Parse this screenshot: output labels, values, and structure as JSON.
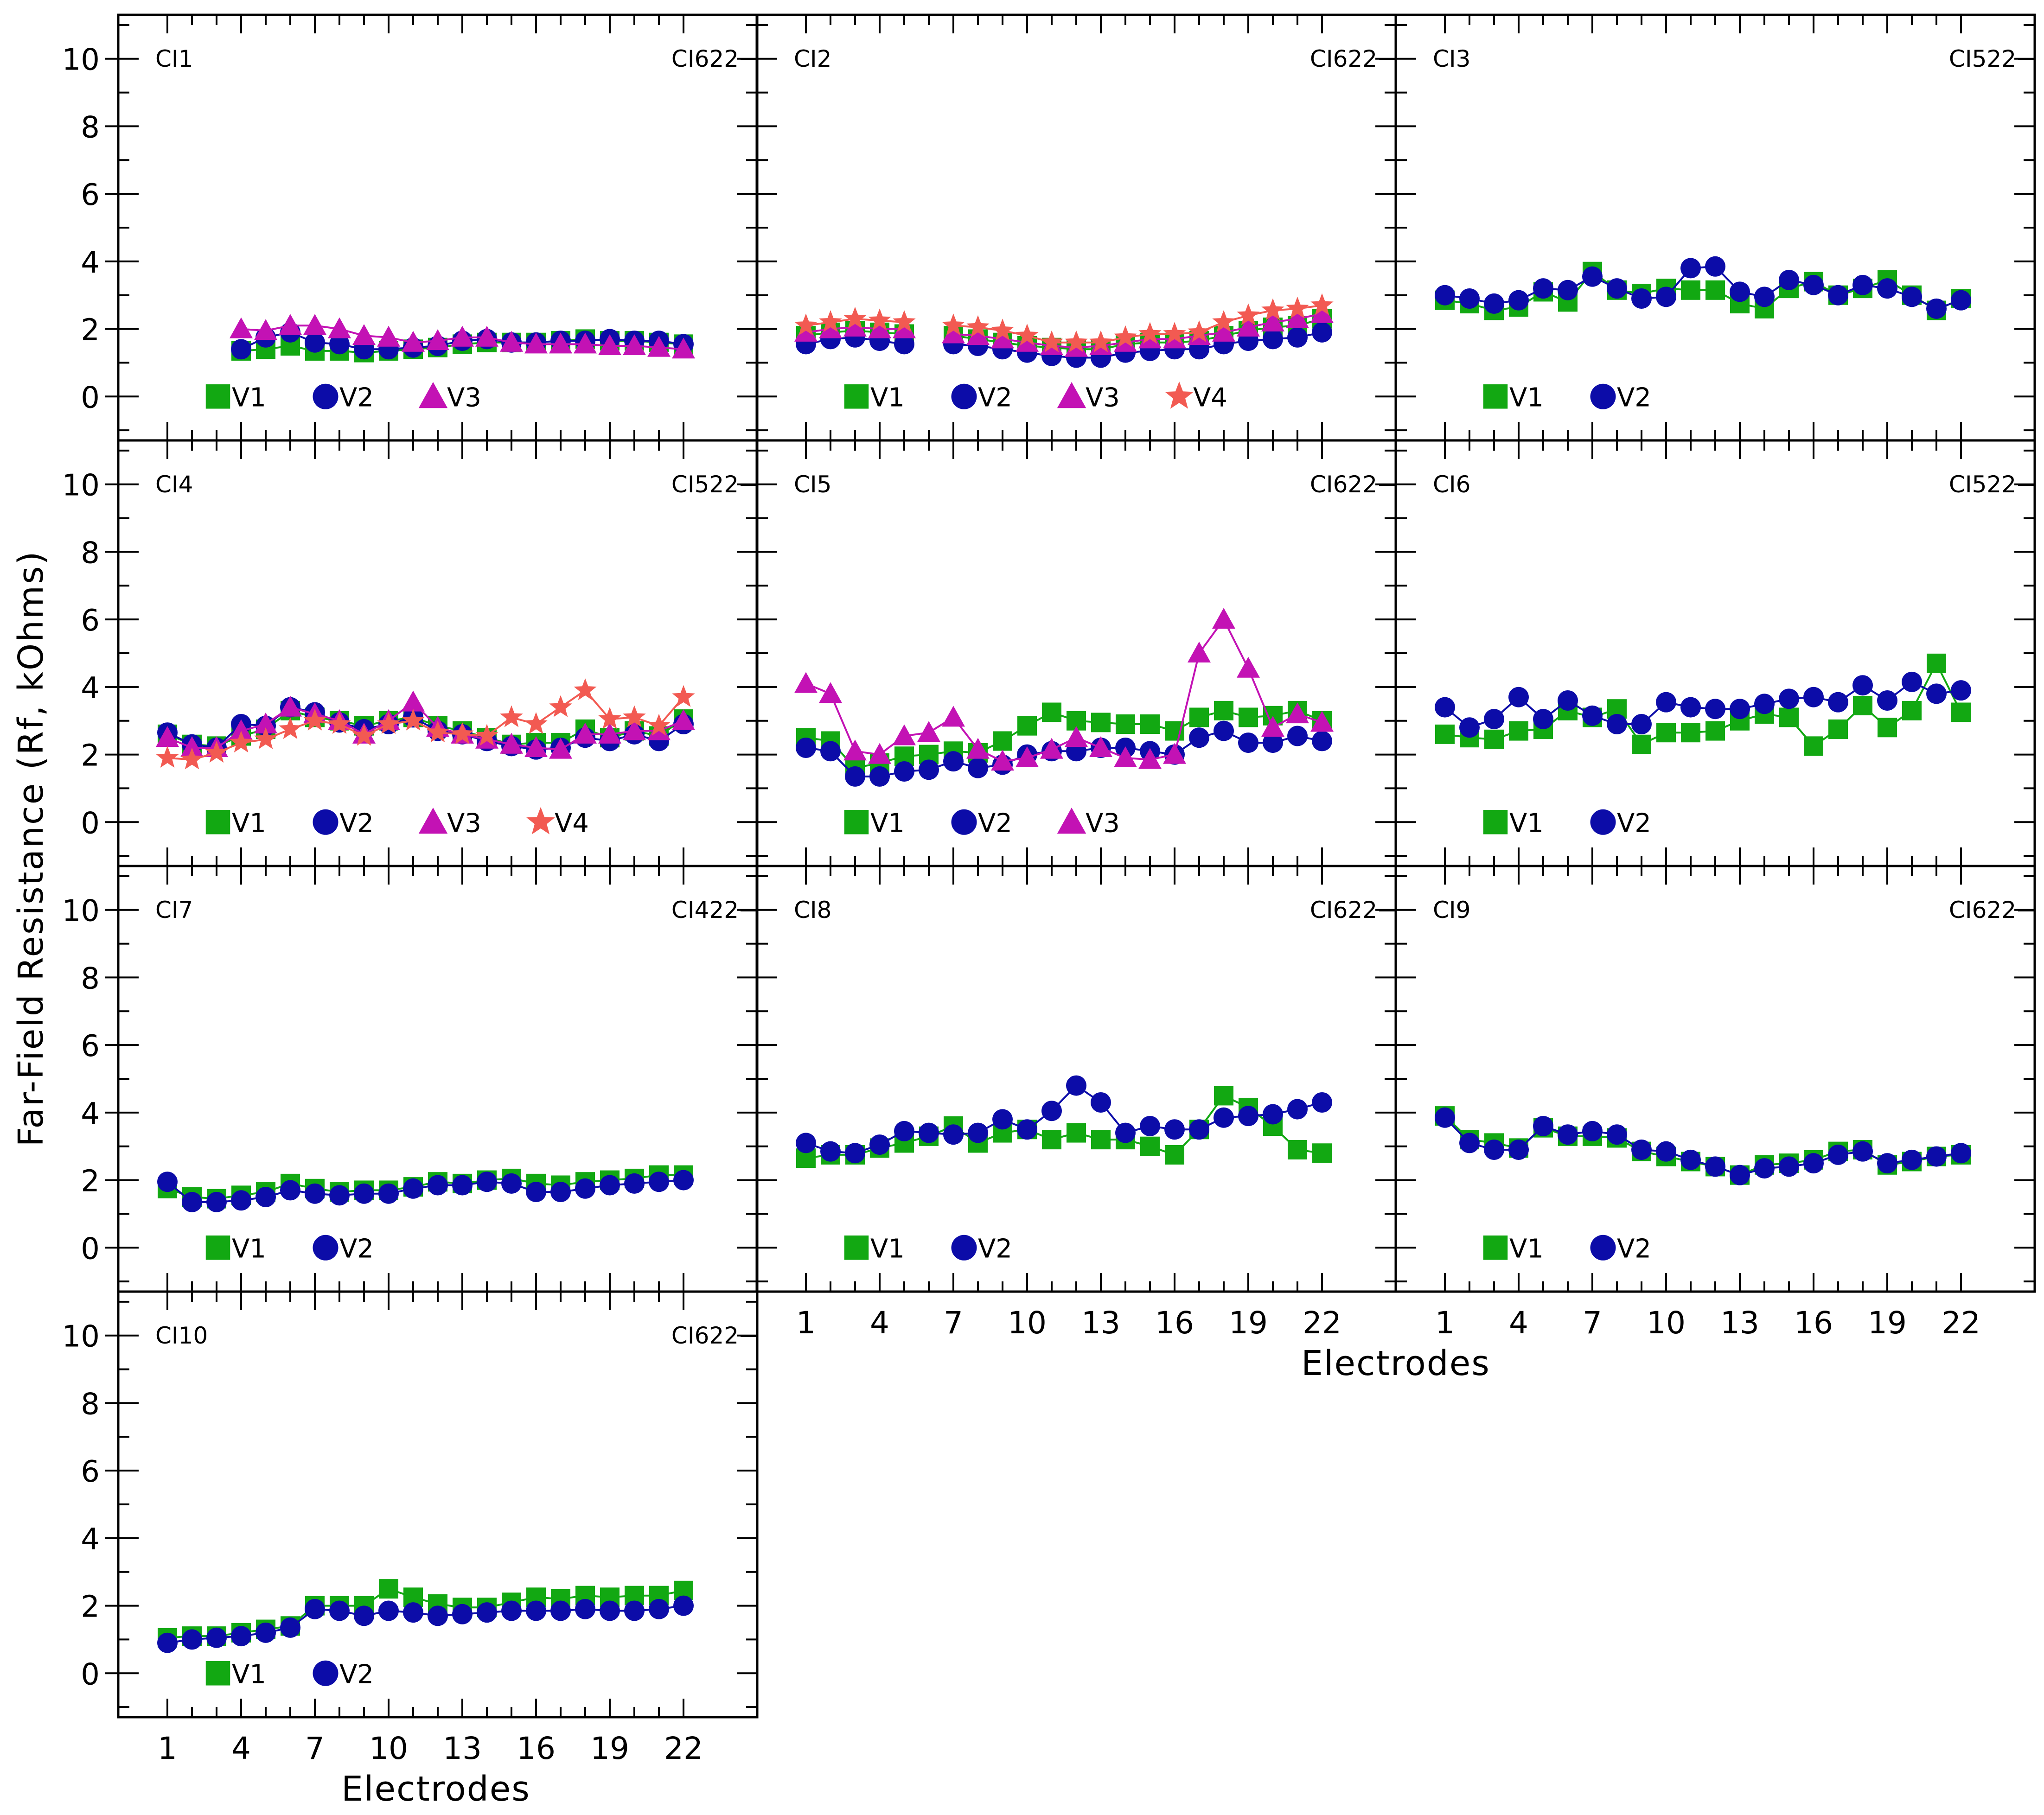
{
  "figure": {
    "ylabel": "Far-Field Resistance (Rf, kOhms)",
    "xlabel": "Electrodes"
  },
  "chart_data": {
    "type": "line",
    "ylabel": "Far-Field Resistance (Rf, kOhms)",
    "xlabel": "Electrodes",
    "ylim": [
      -1.3,
      11.3
    ],
    "xlim": [
      -1,
      25
    ],
    "yticks": [
      "0",
      "2",
      "4",
      "6",
      "8",
      "10"
    ],
    "xticks": [
      "1",
      "4",
      "7",
      "10",
      "13",
      "16",
      "19",
      "22"
    ],
    "colors": {
      "V1": "#12a812",
      "V2": "#0c0ca8",
      "V3": "#c312b4",
      "V4": "#f25a52"
    },
    "panels": [
      {
        "id": "CI1",
        "device": "CI622",
        "series": [
          {
            "name": "V1",
            "marker": "square",
            "values": [
              null,
              null,
              null,
              1.35,
              1.4,
              1.5,
              1.35,
              1.35,
              1.3,
              1.35,
              1.4,
              1.45,
              1.55,
              1.6,
              1.6,
              1.6,
              1.65,
              1.7,
              1.65,
              1.65,
              1.6,
              1.55
            ]
          },
          {
            "name": "V2",
            "marker": "circle",
            "values": [
              null,
              null,
              null,
              1.4,
              1.75,
              1.9,
              1.6,
              1.55,
              1.4,
              1.4,
              1.45,
              1.5,
              1.65,
              1.7,
              1.6,
              1.6,
              1.65,
              1.65,
              1.7,
              1.65,
              1.65,
              1.55
            ]
          },
          {
            "name": "V3",
            "marker": "triangle",
            "values": [
              null,
              null,
              null,
              2.0,
              1.95,
              2.1,
              2.1,
              2.0,
              1.8,
              1.75,
              1.6,
              1.65,
              1.75,
              1.75,
              1.6,
              1.55,
              1.55,
              1.55,
              1.5,
              1.5,
              1.45,
              1.4
            ]
          }
        ]
      },
      {
        "id": "CI2",
        "device": "CI622",
        "series": [
          {
            "name": "V1",
            "marker": "square",
            "values": [
              1.8,
              1.9,
              1.95,
              1.9,
              1.85,
              null,
              1.8,
              1.7,
              1.6,
              1.5,
              1.45,
              1.4,
              1.4,
              1.55,
              1.6,
              1.6,
              1.65,
              1.8,
              1.95,
              2.05,
              2.1,
              2.3
            ]
          },
          {
            "name": "V2",
            "marker": "circle",
            "values": [
              1.55,
              1.7,
              1.75,
              1.65,
              1.55,
              null,
              1.55,
              1.5,
              1.4,
              1.3,
              1.2,
              1.15,
              1.15,
              1.3,
              1.35,
              1.4,
              1.4,
              1.55,
              1.65,
              1.7,
              1.75,
              1.9
            ]
          },
          {
            "name": "V3",
            "marker": "triangle",
            "values": [
              1.9,
              2.0,
              2.05,
              2.0,
              2.0,
              null,
              1.85,
              1.8,
              1.7,
              1.6,
              1.5,
              1.45,
              1.5,
              1.6,
              1.7,
              1.7,
              1.8,
              1.9,
              2.05,
              2.2,
              2.3,
              2.45
            ]
          },
          {
            "name": "V4",
            "marker": "star",
            "values": [
              2.1,
              2.2,
              2.3,
              2.25,
              2.2,
              null,
              2.1,
              2.05,
              1.95,
              1.8,
              1.6,
              1.6,
              1.6,
              1.75,
              1.85,
              1.85,
              1.9,
              2.2,
              2.4,
              2.55,
              2.6,
              2.7
            ]
          }
        ]
      },
      {
        "id": "CI3",
        "device": "CI522",
        "series": [
          {
            "name": "V1",
            "marker": "square",
            "values": [
              2.85,
              2.75,
              2.55,
              2.65,
              3.1,
              2.8,
              3.7,
              3.15,
              3.05,
              3.2,
              3.15,
              3.15,
              2.75,
              2.6,
              3.2,
              3.4,
              3.0,
              3.2,
              3.45,
              3.0,
              2.55,
              2.9
            ]
          },
          {
            "name": "V2",
            "marker": "circle",
            "values": [
              3.0,
              2.9,
              2.75,
              2.85,
              3.2,
              3.15,
              3.55,
              3.2,
              2.9,
              2.95,
              3.8,
              3.85,
              3.1,
              2.95,
              3.45,
              3.3,
              3.0,
              3.3,
              3.2,
              2.95,
              2.6,
              2.85
            ]
          }
        ]
      },
      {
        "id": "CI4",
        "device": "CI522",
        "series": [
          {
            "name": "V1",
            "marker": "square",
            "values": [
              2.6,
              2.3,
              2.25,
              2.55,
              2.75,
              3.3,
              3.1,
              3.0,
              2.85,
              3.0,
              3.1,
              2.85,
              2.7,
              2.5,
              2.3,
              2.35,
              2.35,
              2.75,
              2.5,
              2.7,
              2.55,
              3.05
            ]
          },
          {
            "name": "V2",
            "marker": "circle",
            "values": [
              2.65,
              2.3,
              2.2,
              2.9,
              2.85,
              3.4,
              3.25,
              2.95,
              2.75,
              2.9,
              3.1,
              2.7,
              2.6,
              2.4,
              2.25,
              2.15,
              2.2,
              2.5,
              2.4,
              2.6,
              2.4,
              2.9
            ]
          },
          {
            "name": "V3",
            "marker": "triangle",
            "values": [
              2.5,
              2.2,
              2.2,
              2.7,
              2.9,
              3.4,
              3.2,
              3.0,
              2.6,
              3.0,
              3.55,
              2.8,
              2.6,
              2.45,
              2.3,
              2.2,
              2.15,
              2.6,
              2.6,
              2.7,
              2.7,
              3.0
            ]
          },
          {
            "name": "V4",
            "marker": "star",
            "values": [
              1.9,
              1.85,
              2.05,
              2.35,
              2.45,
              2.75,
              3.0,
              2.9,
              2.55,
              2.9,
              3.0,
              2.65,
              2.6,
              2.55,
              3.1,
              2.9,
              3.4,
              3.9,
              3.05,
              3.1,
              2.85,
              3.7
            ]
          }
        ]
      },
      {
        "id": "CI5",
        "device": "CI622",
        "series": [
          {
            "name": "V1",
            "marker": "square",
            "values": [
              2.5,
              2.4,
              1.6,
              1.75,
              1.95,
              2.0,
              2.1,
              2.05,
              2.4,
              2.85,
              3.25,
              3.0,
              2.95,
              2.9,
              2.9,
              2.7,
              3.1,
              3.3,
              3.1,
              3.15,
              3.3,
              3.0
            ]
          },
          {
            "name": "V2",
            "marker": "circle",
            "values": [
              2.2,
              2.1,
              1.35,
              1.35,
              1.5,
              1.55,
              1.8,
              1.6,
              1.7,
              2.0,
              2.1,
              2.1,
              2.2,
              2.2,
              2.1,
              2.0,
              2.5,
              2.7,
              2.35,
              2.35,
              2.55,
              2.4
            ]
          },
          {
            "name": "V3",
            "marker": "triangle",
            "values": [
              4.1,
              3.8,
              2.1,
              2.0,
              2.55,
              2.65,
              3.1,
              2.15,
              1.8,
              1.9,
              2.15,
              2.5,
              2.2,
              1.9,
              1.85,
              2.0,
              5.0,
              6.0,
              4.55,
              2.8,
              3.2,
              2.95
            ]
          }
        ]
      },
      {
        "id": "CI6",
        "device": "CI522",
        "series": [
          {
            "name": "V1",
            "marker": "square",
            "values": [
              2.6,
              2.5,
              2.45,
              2.7,
              2.75,
              3.3,
              3.1,
              3.35,
              2.3,
              2.65,
              2.65,
              2.7,
              3.0,
              3.2,
              3.1,
              2.25,
              2.75,
              3.45,
              2.8,
              3.3,
              4.7,
              3.25
            ]
          },
          {
            "name": "V2",
            "marker": "circle",
            "values": [
              3.4,
              2.8,
              3.05,
              3.7,
              3.05,
              3.6,
              3.15,
              2.9,
              2.9,
              3.55,
              3.4,
              3.35,
              3.35,
              3.5,
              3.65,
              3.7,
              3.55,
              4.05,
              3.6,
              4.15,
              3.8,
              3.9
            ]
          }
        ]
      },
      {
        "id": "CI7",
        "device": "CI422",
        "series": [
          {
            "name": "V1",
            "marker": "square",
            "values": [
              1.75,
              1.5,
              1.45,
              1.55,
              1.65,
              1.9,
              1.75,
              1.65,
              1.7,
              1.7,
              1.8,
              1.95,
              1.9,
              2.0,
              2.05,
              1.9,
              1.85,
              1.95,
              2.0,
              2.05,
              2.15,
              2.15
            ]
          },
          {
            "name": "V2",
            "marker": "circle",
            "values": [
              1.95,
              1.35,
              1.35,
              1.4,
              1.5,
              1.7,
              1.6,
              1.55,
              1.6,
              1.6,
              1.75,
              1.85,
              1.85,
              1.95,
              1.9,
              1.65,
              1.65,
              1.75,
              1.85,
              1.9,
              1.95,
              2.0
            ]
          }
        ]
      },
      {
        "id": "CI8",
        "device": "CI622",
        "series": [
          {
            "name": "V1",
            "marker": "square",
            "values": [
              2.65,
              2.75,
              2.75,
              2.95,
              3.1,
              3.3,
              3.6,
              3.1,
              3.4,
              3.5,
              3.2,
              3.4,
              3.2,
              3.2,
              3.0,
              2.75,
              3.5,
              4.5,
              4.15,
              3.6,
              2.9,
              2.8
            ]
          },
          {
            "name": "V2",
            "marker": "circle",
            "values": [
              3.1,
              2.85,
              2.8,
              3.05,
              3.45,
              3.4,
              3.35,
              3.4,
              3.8,
              3.5,
              4.05,
              4.8,
              4.3,
              3.4,
              3.6,
              3.5,
              3.5,
              3.85,
              3.9,
              3.95,
              4.1,
              4.3
            ]
          }
        ]
      },
      {
        "id": "CI9",
        "device": "CI622",
        "series": [
          {
            "name": "V1",
            "marker": "square",
            "values": [
              3.9,
              3.2,
              3.1,
              2.95,
              3.55,
              3.3,
              3.3,
              3.25,
              2.85,
              2.7,
              2.55,
              2.4,
              2.15,
              2.45,
              2.5,
              2.6,
              2.85,
              2.9,
              2.45,
              2.55,
              2.7,
              2.75
            ]
          },
          {
            "name": "V2",
            "marker": "circle",
            "values": [
              3.85,
              3.1,
              2.9,
              2.9,
              3.6,
              3.35,
              3.45,
              3.35,
              2.9,
              2.85,
              2.6,
              2.4,
              2.15,
              2.35,
              2.4,
              2.5,
              2.75,
              2.85,
              2.5,
              2.6,
              2.7,
              2.8
            ]
          }
        ]
      },
      {
        "id": "CI10",
        "device": "CI622",
        "series": [
          {
            "name": "V1",
            "marker": "square",
            "values": [
              1.05,
              1.1,
              1.1,
              1.2,
              1.3,
              1.4,
              2.0,
              2.0,
              2.0,
              2.5,
              2.25,
              2.05,
              1.95,
              1.95,
              2.1,
              2.25,
              2.2,
              2.3,
              2.25,
              2.3,
              2.3,
              2.45
            ]
          },
          {
            "name": "V2",
            "marker": "circle",
            "values": [
              0.9,
              1.0,
              1.05,
              1.1,
              1.2,
              1.35,
              1.9,
              1.85,
              1.7,
              1.85,
              1.8,
              1.7,
              1.75,
              1.8,
              1.85,
              1.85,
              1.85,
              1.9,
              1.85,
              1.85,
              1.9,
              2.0
            ]
          }
        ]
      }
    ]
  }
}
